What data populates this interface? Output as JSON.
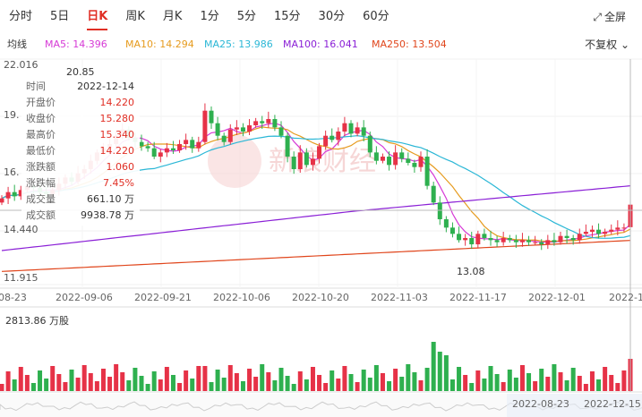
{
  "tabs": [
    "分时",
    "5日",
    "日K",
    "周K",
    "月K",
    "1分",
    "5分",
    "15分",
    "30分",
    "60分"
  ],
  "active_tab": "日K",
  "fullscreen": {
    "label": "全屏",
    "icon": "expand-icon"
  },
  "adjust": {
    "label": "不复权",
    "icon": "chevron-down-icon"
  },
  "ma": {
    "label": "均线",
    "items": [
      {
        "text": "MA5: 14.396",
        "color": "#d63ad6"
      },
      {
        "text": "MA10: 14.294",
        "color": "#e69b1e"
      },
      {
        "text": "MA25: 13.986",
        "color": "#2bb7d6"
      },
      {
        "text": "MA100: 16.041",
        "color": "#8a1fd6"
      },
      {
        "text": "MA250: 13.504",
        "color": "#e0451b"
      }
    ]
  },
  "price_axis": [
    "22.016",
    "19.",
    "16.",
    "14.440",
    "11.915"
  ],
  "high_label": "20.85",
  "low_label": "13.08",
  "tooltip": [
    {
      "k": "时间",
      "v": "2022-12-14",
      "red": false
    },
    {
      "k": "开盘价",
      "v": "14.220",
      "red": true
    },
    {
      "k": "收盘价",
      "v": "15.280",
      "red": true
    },
    {
      "k": "最高价",
      "v": "15.340",
      "red": true
    },
    {
      "k": "最低价",
      "v": "14.220",
      "red": true
    },
    {
      "k": "涨跌额",
      "v": "1.060",
      "red": true
    },
    {
      "k": "涨跌幅",
      "v": "7.45%",
      "red": true
    },
    {
      "k": "成交量",
      "v": "661.10 万",
      "red": false
    },
    {
      "k": "成交额",
      "v": "9938.78 万",
      "red": false
    }
  ],
  "x_axis": [
    "-08-23",
    "2022-09-06",
    "2022-09-21",
    "2022-10-06",
    "2022-10-20",
    "2022-11-03",
    "2022-11-17",
    "2022-12-01",
    "2022-1"
  ],
  "volume_label": "2813.86 万股",
  "range": {
    "start": "2022-08-23",
    "end": "2022-12-15"
  },
  "watermark": "新浪财经",
  "colors": {
    "up": "#e63247",
    "down": "#2eb04f",
    "accent": "#e02e24"
  }
}
